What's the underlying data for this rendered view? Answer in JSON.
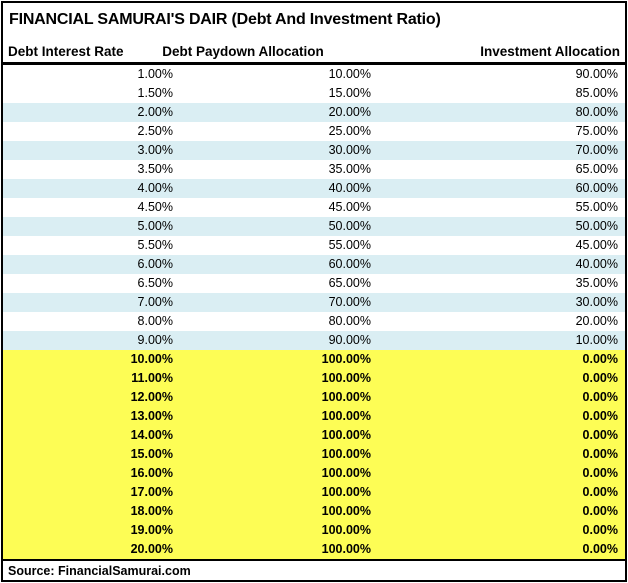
{
  "title": "FINANCIAL SAMURAI'S DAIR (Debt And Investment Ratio)",
  "source_label": "Source: FinancialSamurai.com",
  "colors": {
    "stripe": "#DAEEF3",
    "highlight": "#FDFD55",
    "border": "#000000",
    "text": "#000000",
    "background": "#FFFFFF"
  },
  "table": {
    "headers": [
      "Debt Interest Rate",
      "Debt Paydown Allocation",
      "Investment Allocation"
    ],
    "rows": [
      {
        "rate": "1.00%",
        "paydown": "10.00%",
        "investment": "90.00%",
        "band": "white"
      },
      {
        "rate": "1.50%",
        "paydown": "15.00%",
        "investment": "85.00%",
        "band": "white"
      },
      {
        "rate": "2.00%",
        "paydown": "20.00%",
        "investment": "80.00%",
        "band": "stripe"
      },
      {
        "rate": "2.50%",
        "paydown": "25.00%",
        "investment": "75.00%",
        "band": "white"
      },
      {
        "rate": "3.00%",
        "paydown": "30.00%",
        "investment": "70.00%",
        "band": "stripe"
      },
      {
        "rate": "3.50%",
        "paydown": "35.00%",
        "investment": "65.00%",
        "band": "white"
      },
      {
        "rate": "4.00%",
        "paydown": "40.00%",
        "investment": "60.00%",
        "band": "stripe"
      },
      {
        "rate": "4.50%",
        "paydown": "45.00%",
        "investment": "55.00%",
        "band": "white"
      },
      {
        "rate": "5.00%",
        "paydown": "50.00%",
        "investment": "50.00%",
        "band": "stripe"
      },
      {
        "rate": "5.50%",
        "paydown": "55.00%",
        "investment": "45.00%",
        "band": "white"
      },
      {
        "rate": "6.00%",
        "paydown": "60.00%",
        "investment": "40.00%",
        "band": "stripe"
      },
      {
        "rate": "6.50%",
        "paydown": "65.00%",
        "investment": "35.00%",
        "band": "white"
      },
      {
        "rate": "7.00%",
        "paydown": "70.00%",
        "investment": "30.00%",
        "band": "stripe"
      },
      {
        "rate": "8.00%",
        "paydown": "80.00%",
        "investment": "20.00%",
        "band": "white"
      },
      {
        "rate": "9.00%",
        "paydown": "90.00%",
        "investment": "10.00%",
        "band": "stripe"
      },
      {
        "rate": "10.00%",
        "paydown": "100.00%",
        "investment": "0.00%",
        "band": "highlight"
      },
      {
        "rate": "11.00%",
        "paydown": "100.00%",
        "investment": "0.00%",
        "band": "highlight"
      },
      {
        "rate": "12.00%",
        "paydown": "100.00%",
        "investment": "0.00%",
        "band": "highlight"
      },
      {
        "rate": "13.00%",
        "paydown": "100.00%",
        "investment": "0.00%",
        "band": "highlight"
      },
      {
        "rate": "14.00%",
        "paydown": "100.00%",
        "investment": "0.00%",
        "band": "highlight"
      },
      {
        "rate": "15.00%",
        "paydown": "100.00%",
        "investment": "0.00%",
        "band": "highlight"
      },
      {
        "rate": "16.00%",
        "paydown": "100.00%",
        "investment": "0.00%",
        "band": "highlight"
      },
      {
        "rate": "17.00%",
        "paydown": "100.00%",
        "investment": "0.00%",
        "band": "highlight"
      },
      {
        "rate": "18.00%",
        "paydown": "100.00%",
        "investment": "0.00%",
        "band": "highlight"
      },
      {
        "rate": "19.00%",
        "paydown": "100.00%",
        "investment": "0.00%",
        "band": "highlight"
      },
      {
        "rate": "20.00%",
        "paydown": "100.00%",
        "investment": "0.00%",
        "band": "highlight"
      }
    ]
  },
  "chart_data": {
    "type": "table",
    "title": "FINANCIAL SAMURAI'S DAIR (Debt And Investment Ratio)",
    "columns": [
      "Debt Interest Rate (%)",
      "Debt Paydown Allocation (%)",
      "Investment Allocation (%)"
    ],
    "rows": [
      [
        1.0,
        10.0,
        90.0
      ],
      [
        1.5,
        15.0,
        85.0
      ],
      [
        2.0,
        20.0,
        80.0
      ],
      [
        2.5,
        25.0,
        75.0
      ],
      [
        3.0,
        30.0,
        70.0
      ],
      [
        3.5,
        35.0,
        65.0
      ],
      [
        4.0,
        40.0,
        60.0
      ],
      [
        4.5,
        45.0,
        55.0
      ],
      [
        5.0,
        50.0,
        50.0
      ],
      [
        5.5,
        55.0,
        45.0
      ],
      [
        6.0,
        60.0,
        40.0
      ],
      [
        6.5,
        65.0,
        35.0
      ],
      [
        7.0,
        70.0,
        30.0
      ],
      [
        8.0,
        80.0,
        20.0
      ],
      [
        9.0,
        90.0,
        10.0
      ],
      [
        10.0,
        100.0,
        0.0
      ],
      [
        11.0,
        100.0,
        0.0
      ],
      [
        12.0,
        100.0,
        0.0
      ],
      [
        13.0,
        100.0,
        0.0
      ],
      [
        14.0,
        100.0,
        0.0
      ],
      [
        15.0,
        100.0,
        0.0
      ],
      [
        16.0,
        100.0,
        0.0
      ],
      [
        17.0,
        100.0,
        0.0
      ],
      [
        18.0,
        100.0,
        0.0
      ],
      [
        19.0,
        100.0,
        0.0
      ],
      [
        20.0,
        100.0,
        0.0
      ]
    ],
    "highlight_note": "Rows with rate 10.00% to 20.00% are highlighted yellow in bold; rows 2%,3%,4%,5%,6%,7%,9% have light-blue banding",
    "source": "Source: FinancialSamurai.com"
  }
}
